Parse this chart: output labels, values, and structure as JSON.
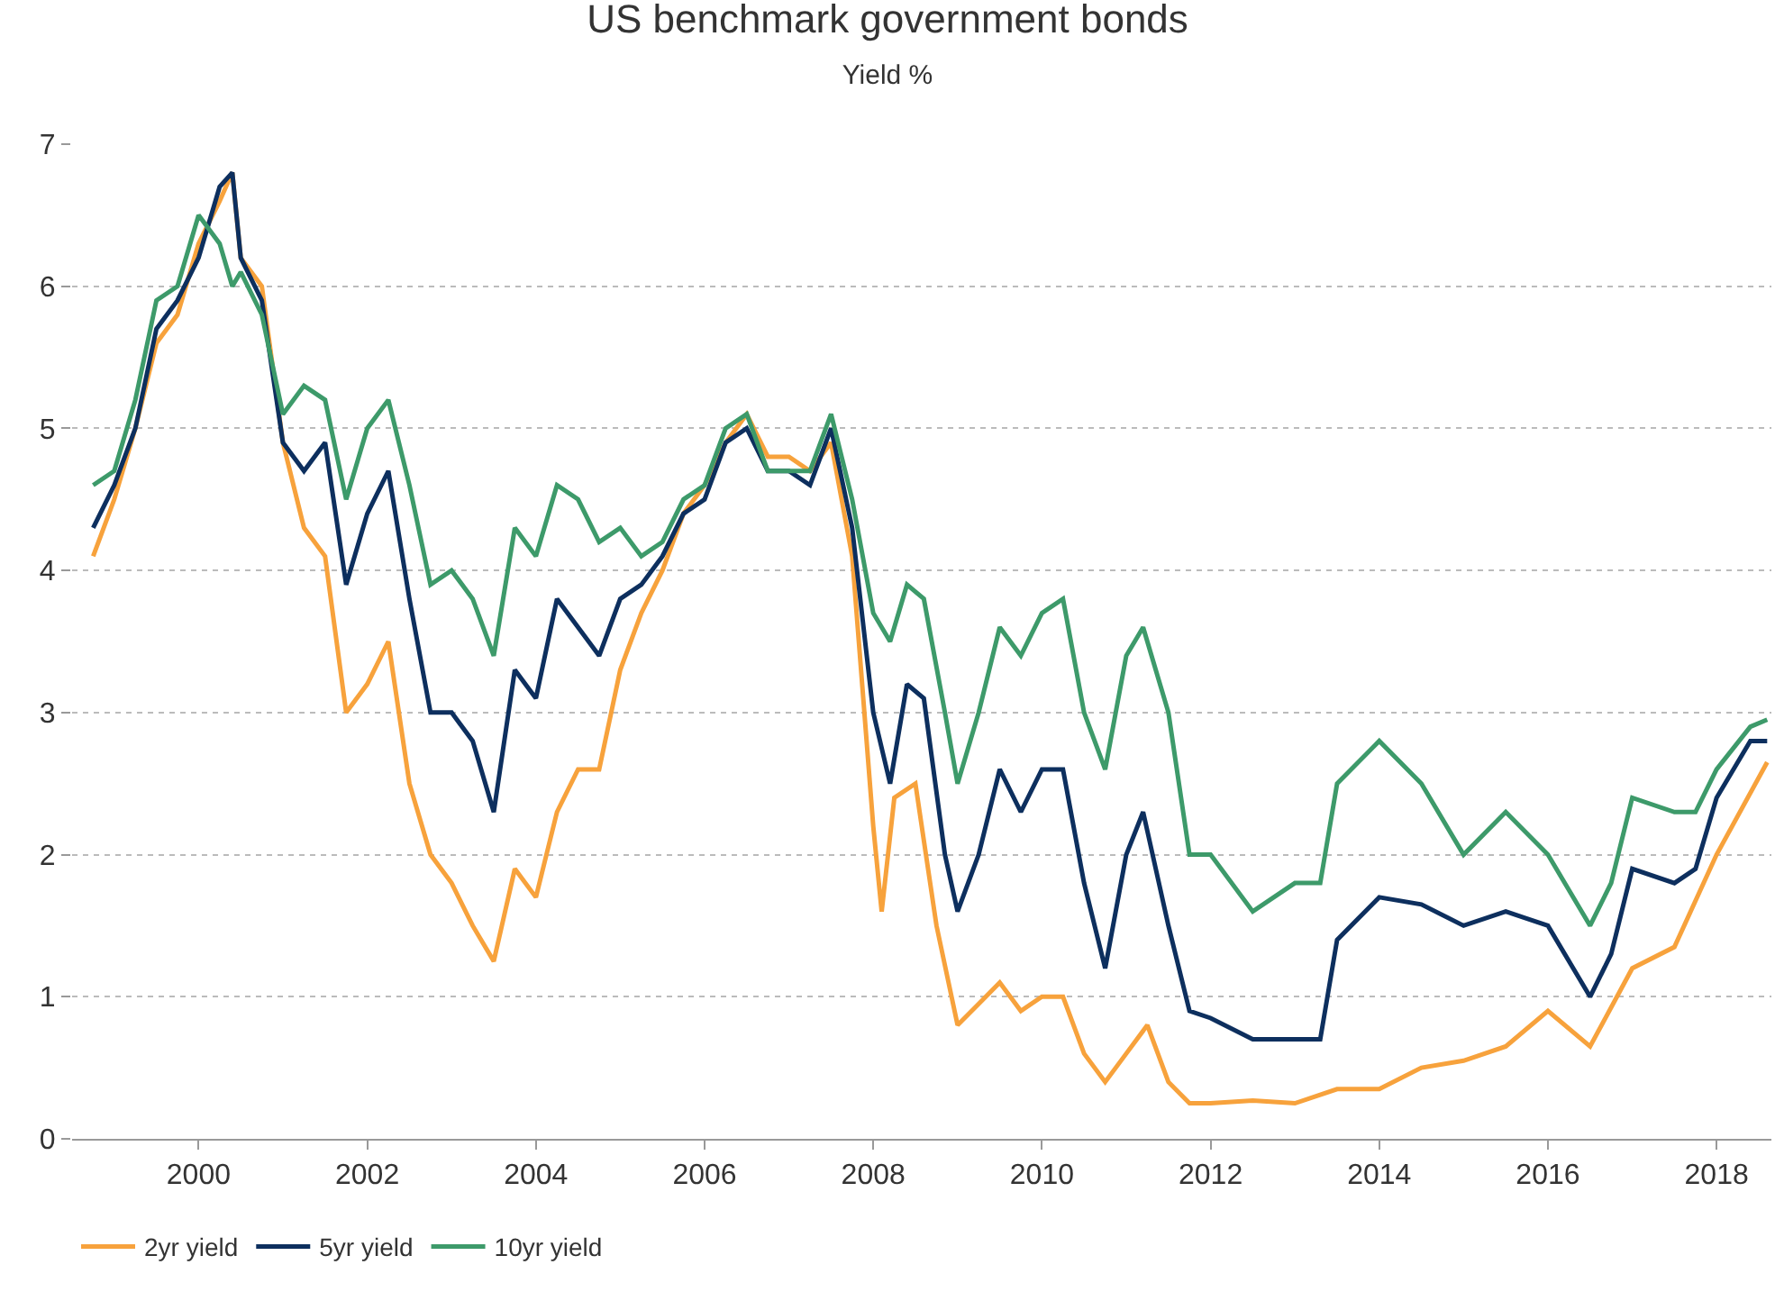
{
  "chart_data": {
    "type": "line",
    "title": "US benchmark government bonds",
    "subtitle": "Yield %",
    "xlim": [
      1998.5,
      2018.65
    ],
    "xticks": [
      2000,
      2002,
      2004,
      2006,
      2008,
      2010,
      2012,
      2014,
      2016,
      2018
    ],
    "ylim": [
      0,
      7
    ],
    "yticks": [
      0,
      1,
      2,
      3,
      4,
      5,
      6,
      7
    ],
    "grid": "y",
    "legend": "bottom left",
    "line_style": "solid",
    "marker": "none",
    "series": [
      {
        "name": "2yr yield",
        "color": "#f7a23c",
        "x": [
          1998.75,
          1999,
          1999.25,
          1999.5,
          1999.75,
          2000,
          2000.25,
          2000.4,
          2000.5,
          2000.75,
          2001,
          2001.25,
          2001.5,
          2001.75,
          2002,
          2002.25,
          2002.5,
          2002.75,
          2003,
          2003.25,
          2003.5,
          2003.75,
          2004,
          2004.25,
          2004.5,
          2004.75,
          2005,
          2005.25,
          2005.5,
          2005.75,
          2006,
          2006.25,
          2006.5,
          2006.75,
          2007,
          2007.25,
          2007.5,
          2007.75,
          2008,
          2008.1,
          2008.25,
          2008.5,
          2008.75,
          2009,
          2009.25,
          2009.5,
          2009.75,
          2010,
          2010.25,
          2010.5,
          2010.75,
          2011,
          2011.25,
          2011.5,
          2011.75,
          2012,
          2012.5,
          2013,
          2013.5,
          2014,
          2014.5,
          2015,
          2015.5,
          2016,
          2016.5,
          2017,
          2017.5,
          2018,
          2018.6
        ],
        "values": [
          4.1,
          4.5,
          5.0,
          5.6,
          5.8,
          6.3,
          6.6,
          6.8,
          6.2,
          6.0,
          4.9,
          4.3,
          4.1,
          3.0,
          3.2,
          3.5,
          2.5,
          2.0,
          1.8,
          1.5,
          1.25,
          1.9,
          1.7,
          2.3,
          2.6,
          2.6,
          3.3,
          3.7,
          4.0,
          4.4,
          4.6,
          4.9,
          5.1,
          4.8,
          4.8,
          4.7,
          4.9,
          4.1,
          2.2,
          1.6,
          2.4,
          2.5,
          1.5,
          0.8,
          0.95,
          1.1,
          0.9,
          1.0,
          1.0,
          0.6,
          0.4,
          0.6,
          0.8,
          0.4,
          0.25,
          0.25,
          0.27,
          0.25,
          0.35,
          0.35,
          0.5,
          0.55,
          0.65,
          0.9,
          0.65,
          1.2,
          1.35,
          2.0,
          2.65
        ]
      },
      {
        "name": "5yr yield",
        "color": "#0d2f5e",
        "x": [
          1998.75,
          1999,
          1999.25,
          1999.5,
          1999.75,
          2000,
          2000.25,
          2000.4,
          2000.5,
          2000.75,
          2001,
          2001.25,
          2001.5,
          2001.75,
          2002,
          2002.25,
          2002.5,
          2002.75,
          2003,
          2003.25,
          2003.5,
          2003.75,
          2004,
          2004.25,
          2004.5,
          2004.75,
          2005,
          2005.25,
          2005.5,
          2005.75,
          2006,
          2006.25,
          2006.5,
          2006.75,
          2007,
          2007.25,
          2007.5,
          2007.75,
          2008,
          2008.2,
          2008.4,
          2008.6,
          2008.85,
          2009,
          2009.25,
          2009.5,
          2009.75,
          2010,
          2010.25,
          2010.5,
          2010.75,
          2011,
          2011.2,
          2011.5,
          2011.75,
          2012,
          2012.5,
          2013,
          2013.3,
          2013.5,
          2014,
          2014.5,
          2015,
          2015.5,
          2016,
          2016.5,
          2016.75,
          2017,
          2017.5,
          2017.75,
          2018,
          2018.4,
          2018.6
        ],
        "values": [
          4.3,
          4.6,
          5.0,
          5.7,
          5.9,
          6.2,
          6.7,
          6.8,
          6.2,
          5.9,
          4.9,
          4.7,
          4.9,
          3.9,
          4.4,
          4.7,
          3.8,
          3.0,
          3.0,
          2.8,
          2.3,
          3.3,
          3.1,
          3.8,
          3.6,
          3.4,
          3.8,
          3.9,
          4.1,
          4.4,
          4.5,
          4.9,
          5.0,
          4.7,
          4.7,
          4.6,
          5.0,
          4.3,
          3.0,
          2.5,
          3.2,
          3.1,
          2.0,
          1.6,
          2.0,
          2.6,
          2.3,
          2.6,
          2.6,
          1.8,
          1.2,
          2.0,
          2.3,
          1.5,
          0.9,
          0.85,
          0.7,
          0.7,
          0.7,
          1.4,
          1.7,
          1.65,
          1.5,
          1.6,
          1.5,
          1.0,
          1.3,
          1.9,
          1.8,
          1.9,
          2.4,
          2.8,
          2.8
        ]
      },
      {
        "name": "10yr yield",
        "color": "#3d9a6a",
        "x": [
          1998.75,
          1999,
          1999.25,
          1999.5,
          1999.75,
          2000,
          2000.25,
          2000.4,
          2000.5,
          2000.75,
          2001,
          2001.25,
          2001.5,
          2001.75,
          2002,
          2002.25,
          2002.5,
          2002.75,
          2003,
          2003.25,
          2003.5,
          2003.75,
          2004,
          2004.25,
          2004.5,
          2004.75,
          2005,
          2005.25,
          2005.5,
          2005.75,
          2006,
          2006.25,
          2006.5,
          2006.75,
          2007,
          2007.25,
          2007.5,
          2007.75,
          2008,
          2008.2,
          2008.4,
          2008.6,
          2008.85,
          2009,
          2009.25,
          2009.5,
          2009.75,
          2010,
          2010.25,
          2010.5,
          2010.75,
          2011,
          2011.2,
          2011.5,
          2011.75,
          2012,
          2012.5,
          2013,
          2013.3,
          2013.5,
          2014,
          2014.5,
          2015,
          2015.5,
          2016,
          2016.5,
          2016.75,
          2017,
          2017.5,
          2017.75,
          2018,
          2018.4,
          2018.6
        ],
        "values": [
          4.6,
          4.7,
          5.2,
          5.9,
          6.0,
          6.5,
          6.3,
          6.0,
          6.1,
          5.8,
          5.1,
          5.3,
          5.2,
          4.5,
          5.0,
          5.2,
          4.6,
          3.9,
          4.0,
          3.8,
          3.4,
          4.3,
          4.1,
          4.6,
          4.5,
          4.2,
          4.3,
          4.1,
          4.2,
          4.5,
          4.6,
          5.0,
          5.1,
          4.7,
          4.7,
          4.7,
          5.1,
          4.5,
          3.7,
          3.5,
          3.9,
          3.8,
          3.0,
          2.5,
          3.0,
          3.6,
          3.4,
          3.7,
          3.8,
          3.0,
          2.6,
          3.4,
          3.6,
          3.0,
          2.0,
          2.0,
          1.6,
          1.8,
          1.8,
          2.5,
          2.8,
          2.5,
          2.0,
          2.3,
          2.0,
          1.5,
          1.8,
          2.4,
          2.3,
          2.3,
          2.6,
          2.9,
          2.95
        ]
      }
    ]
  }
}
